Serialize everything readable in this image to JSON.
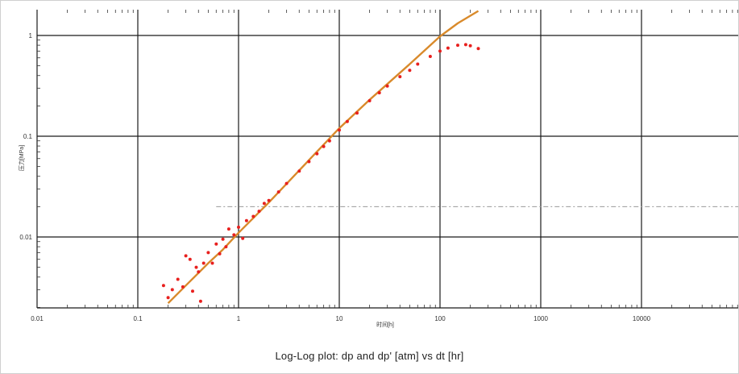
{
  "chart_data": {
    "type": "scatter",
    "title": "Log-Log plot: dp and dp'  [atm] vs dt [hr]",
    "xlabel": "时间[h]",
    "ylabel": "压力[MPa]",
    "xscale": "log",
    "yscale": "log",
    "xlim": [
      0.01,
      90000
    ],
    "ylim": [
      0.002,
      3
    ],
    "grid": true,
    "x_ticks": [
      0.01,
      0.1,
      1,
      10,
      100,
      1000,
      10000
    ],
    "x_tick_labels": [
      "0.01",
      "0.1",
      "1",
      "10",
      "100",
      "1000",
      "10000"
    ],
    "y_ticks": [
      0.01,
      0.1,
      1
    ],
    "y_tick_labels": [
      "0.01",
      "0.1",
      "1"
    ],
    "reference_line": {
      "y": 0.02,
      "x_start": 0.6,
      "color": "#999999"
    },
    "series": [
      {
        "name": "",
        "kind": "line",
        "color": "#d98a2b",
        "x": [
          0.2,
          0.3,
          0.5,
          0.7,
          1,
          2,
          5,
          10,
          20,
          50,
          100,
          150,
          240
        ],
        "y": [
          0.0022,
          0.0033,
          0.0055,
          0.0075,
          0.011,
          0.022,
          0.058,
          0.12,
          0.23,
          0.52,
          0.98,
          1.32,
          1.75
        ]
      },
      {
        "name": "",
        "kind": "points",
        "color": "#e8201e",
        "x": [
          0.18,
          0.2,
          0.22,
          0.25,
          0.28,
          0.3,
          0.33,
          0.35,
          0.38,
          0.4,
          0.42,
          0.45,
          0.5,
          0.55,
          0.6,
          0.65,
          0.7,
          0.75,
          0.8,
          0.9,
          1,
          1.1,
          1.2,
          1.4,
          1.6,
          1.8,
          2,
          2.5,
          3,
          4,
          5,
          6,
          7,
          8,
          10,
          12,
          15,
          20,
          25,
          30,
          40,
          50,
          60,
          80,
          100,
          120,
          150,
          180,
          200,
          240
        ],
        "y": [
          0.0033,
          0.0025,
          0.003,
          0.0038,
          0.0032,
          0.0065,
          0.006,
          0.0029,
          0.005,
          0.0045,
          0.0023,
          0.0055,
          0.007,
          0.0055,
          0.0085,
          0.0068,
          0.0095,
          0.008,
          0.012,
          0.0105,
          0.0125,
          0.0097,
          0.0145,
          0.016,
          0.018,
          0.0215,
          0.023,
          0.028,
          0.034,
          0.045,
          0.056,
          0.067,
          0.079,
          0.09,
          0.115,
          0.14,
          0.17,
          0.225,
          0.27,
          0.315,
          0.39,
          0.45,
          0.52,
          0.62,
          0.7,
          0.75,
          0.8,
          0.81,
          0.79,
          0.74
        ]
      }
    ]
  }
}
